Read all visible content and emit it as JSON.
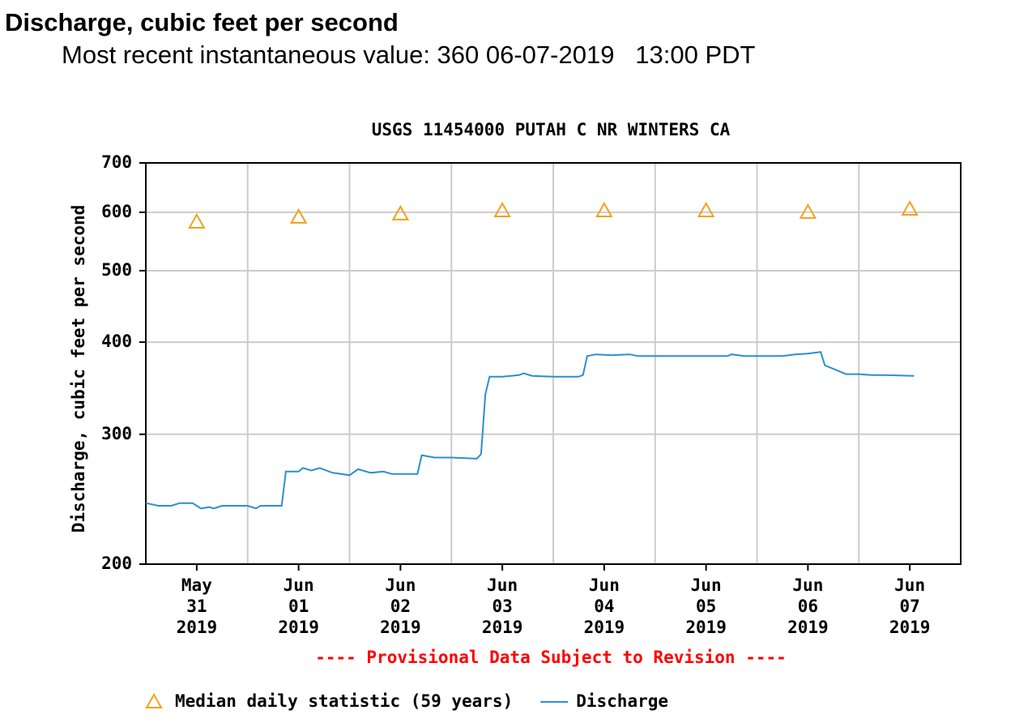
{
  "header": {
    "title": "Discharge, cubic feet per second",
    "subtitle": "Most recent instantaneous value: 360 06-07-2019   13:00 PDT"
  },
  "chart_data": {
    "type": "line",
    "title": "USGS 11454000 PUTAH C NR WINTERS CA",
    "ylabel": "Discharge, cubic feet per second",
    "note": "---- Provisional Data Subject to Revision ----",
    "log_scale_y": true,
    "grid": true,
    "legend": "bottom",
    "xlim": [
      "2019-05-31 00:00",
      "2019-06-08 00:00"
    ],
    "xticks": [
      {
        "value": "2019-05-31 12:00",
        "label": [
          "May",
          "31",
          "2019"
        ]
      },
      {
        "value": "2019-06-01 12:00",
        "label": [
          "Jun",
          "01",
          "2019"
        ]
      },
      {
        "value": "2019-06-02 12:00",
        "label": [
          "Jun",
          "02",
          "2019"
        ]
      },
      {
        "value": "2019-06-03 12:00",
        "label": [
          "Jun",
          "03",
          "2019"
        ]
      },
      {
        "value": "2019-06-04 12:00",
        "label": [
          "Jun",
          "04",
          "2019"
        ]
      },
      {
        "value": "2019-06-05 12:00",
        "label": [
          "Jun",
          "05",
          "2019"
        ]
      },
      {
        "value": "2019-06-06 12:00",
        "label": [
          "Jun",
          "06",
          "2019"
        ]
      },
      {
        "value": "2019-06-07 12:00",
        "label": [
          "Jun",
          "07",
          "2019"
        ]
      }
    ],
    "ylim": [
      200,
      700
    ],
    "yticks": [
      200,
      300,
      400,
      500,
      600,
      700
    ],
    "series": [
      {
        "name": "Median daily statistic (59 years)",
        "marker": "triangle",
        "color": "#f5a01a",
        "x": [
          "2019-05-31 12:00",
          "2019-06-01 12:00",
          "2019-06-02 12:00",
          "2019-06-03 12:00",
          "2019-06-04 12:00",
          "2019-06-05 12:00",
          "2019-06-06 12:00",
          "2019-06-07 12:00"
        ],
        "values": [
          582,
          591,
          597,
          603,
          603,
          603,
          600,
          606
        ]
      },
      {
        "name": "Discharge",
        "marker": "line",
        "color": "#2a8fd4",
        "x": [
          "2019-05-31 00:00",
          "2019-05-31 03:00",
          "2019-05-31 06:00",
          "2019-05-31 08:00",
          "2019-05-31 11:00",
          "2019-05-31 12:00",
          "2019-05-31 13:00",
          "2019-05-31 15:00",
          "2019-05-31 16:00",
          "2019-05-31 18:00",
          "2019-06-01 00:00",
          "2019-06-01 02:00",
          "2019-06-01 03:00",
          "2019-06-01 08:00",
          "2019-06-01 09:00",
          "2019-06-01 12:00",
          "2019-06-01 13:00",
          "2019-06-01 15:00",
          "2019-06-01 17:00",
          "2019-06-01 20:00",
          "2019-06-02 00:00",
          "2019-06-02 02:00",
          "2019-06-02 05:00",
          "2019-06-02 08:00",
          "2019-06-02 10:00",
          "2019-06-02 16:00",
          "2019-06-02 17:00",
          "2019-06-02 20:00",
          "2019-06-03 00:00",
          "2019-06-03 06:00",
          "2019-06-03 07:00",
          "2019-06-03 08:00",
          "2019-06-03 09:00",
          "2019-06-03 12:00",
          "2019-06-03 16:00",
          "2019-06-03 17:00",
          "2019-06-03 19:00",
          "2019-06-04 00:00",
          "2019-06-04 06:00",
          "2019-06-04 07:00",
          "2019-06-04 08:00",
          "2019-06-04 10:00",
          "2019-06-04 14:00",
          "2019-06-04 18:00",
          "2019-06-04 20:00",
          "2019-06-05 00:00",
          "2019-06-05 12:00",
          "2019-06-05 17:00",
          "2019-06-05 18:00",
          "2019-06-05 21:00",
          "2019-06-06 00:00",
          "2019-06-06 06:00",
          "2019-06-06 09:00",
          "2019-06-06 12:00",
          "2019-06-06 15:00",
          "2019-06-06 16:00",
          "2019-06-06 18:00",
          "2019-06-06 21:00",
          "2019-06-07 00:00",
          "2019-06-07 03:00",
          "2019-06-07 06:00",
          "2019-06-07 13:00"
        ],
        "values": [
          242,
          240,
          240,
          242,
          242,
          240,
          238,
          239,
          238,
          240,
          240,
          238,
          240,
          240,
          267,
          267,
          270,
          268,
          270,
          266,
          264,
          269,
          266,
          267,
          265,
          265,
          281,
          279,
          279,
          278,
          282,
          340,
          359,
          359,
          361,
          363,
          360,
          359,
          359,
          361,
          383,
          385,
          384,
          385,
          383,
          383,
          383,
          383,
          385,
          383,
          383,
          383,
          385,
          386,
          388,
          372,
          368,
          362,
          362,
          361,
          361,
          360
        ]
      }
    ]
  }
}
